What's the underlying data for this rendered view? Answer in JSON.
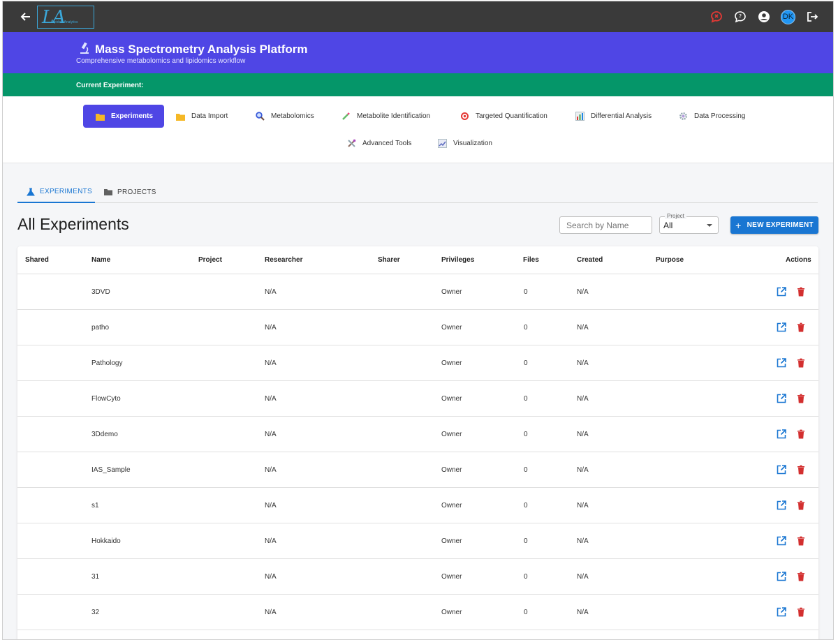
{
  "colors": {
    "appbar": "#3a3a3a",
    "banner": "#4f46e5",
    "experiment_bar": "#059669",
    "primary": "#1976d2",
    "danger": "#d32f2f"
  },
  "topbar": {
    "logo_text": "LA",
    "logo_subtext": "LipidomAnalytics",
    "avatar_initials": "DK"
  },
  "banner": {
    "title": "Mass Spectrometry Analysis Platform",
    "subtitle": "Comprehensive metabolomics and lipidomics workflow"
  },
  "experiment_bar": {
    "label": "Current Experiment:"
  },
  "nav": [
    {
      "label": "Experiments",
      "icon": "folder-icon"
    },
    {
      "label": "Data Import",
      "icon": "folder-icon"
    },
    {
      "label": "Metabolomics",
      "icon": "magnifier-icon"
    },
    {
      "label": "Metabolite Identification",
      "icon": "pipette-icon"
    },
    {
      "label": "Targeted Quantification",
      "icon": "target-icon"
    },
    {
      "label": "Differential Analysis",
      "icon": "bar-chart-icon"
    },
    {
      "label": "Data Processing",
      "icon": "gear-icon"
    },
    {
      "label": "Advanced Tools",
      "icon": "tools-icon"
    },
    {
      "label": "Visualization",
      "icon": "line-chart-icon"
    }
  ],
  "tabs": [
    {
      "label": "EXPERIMENTS",
      "icon": "flask-icon"
    },
    {
      "label": "PROJECTS",
      "icon": "folder-icon"
    }
  ],
  "page": {
    "title": "All Experiments",
    "search_placeholder": "Search by Name",
    "project_filter_label": "Project",
    "project_filter_value": "All",
    "new_button_label": "NEW EXPERIMENT"
  },
  "table": {
    "columns": [
      "Shared",
      "Name",
      "Project",
      "Researcher",
      "Sharer",
      "Privileges",
      "Files",
      "Created",
      "Purpose",
      "Actions"
    ],
    "rows": [
      {
        "shared": "",
        "name": "3DVD",
        "project": "",
        "researcher": "N/A",
        "sharer": "",
        "privileges": "Owner",
        "files": "0",
        "created": "N/A",
        "purpose": ""
      },
      {
        "shared": "",
        "name": "patho",
        "project": "",
        "researcher": "N/A",
        "sharer": "",
        "privileges": "Owner",
        "files": "0",
        "created": "N/A",
        "purpose": ""
      },
      {
        "shared": "",
        "name": "Pathology",
        "project": "",
        "researcher": "N/A",
        "sharer": "",
        "privileges": "Owner",
        "files": "0",
        "created": "N/A",
        "purpose": ""
      },
      {
        "shared": "",
        "name": "FlowCyto",
        "project": "",
        "researcher": "N/A",
        "sharer": "",
        "privileges": "Owner",
        "files": "0",
        "created": "N/A",
        "purpose": ""
      },
      {
        "shared": "",
        "name": "3Ddemo",
        "project": "",
        "researcher": "N/A",
        "sharer": "",
        "privileges": "Owner",
        "files": "0",
        "created": "N/A",
        "purpose": ""
      },
      {
        "shared": "",
        "name": "IAS_Sample",
        "project": "",
        "researcher": "N/A",
        "sharer": "",
        "privileges": "Owner",
        "files": "0",
        "created": "N/A",
        "purpose": ""
      },
      {
        "shared": "",
        "name": "s1",
        "project": "",
        "researcher": "N/A",
        "sharer": "",
        "privileges": "Owner",
        "files": "0",
        "created": "N/A",
        "purpose": ""
      },
      {
        "shared": "",
        "name": "Hokkaido",
        "project": "",
        "researcher": "N/A",
        "sharer": "",
        "privileges": "Owner",
        "files": "0",
        "created": "N/A",
        "purpose": ""
      },
      {
        "shared": "",
        "name": "31",
        "project": "",
        "researcher": "N/A",
        "sharer": "",
        "privileges": "Owner",
        "files": "0",
        "created": "N/A",
        "purpose": ""
      },
      {
        "shared": "",
        "name": "32",
        "project": "",
        "researcher": "N/A",
        "sharer": "",
        "privileges": "Owner",
        "files": "0",
        "created": "N/A",
        "purpose": ""
      }
    ]
  }
}
